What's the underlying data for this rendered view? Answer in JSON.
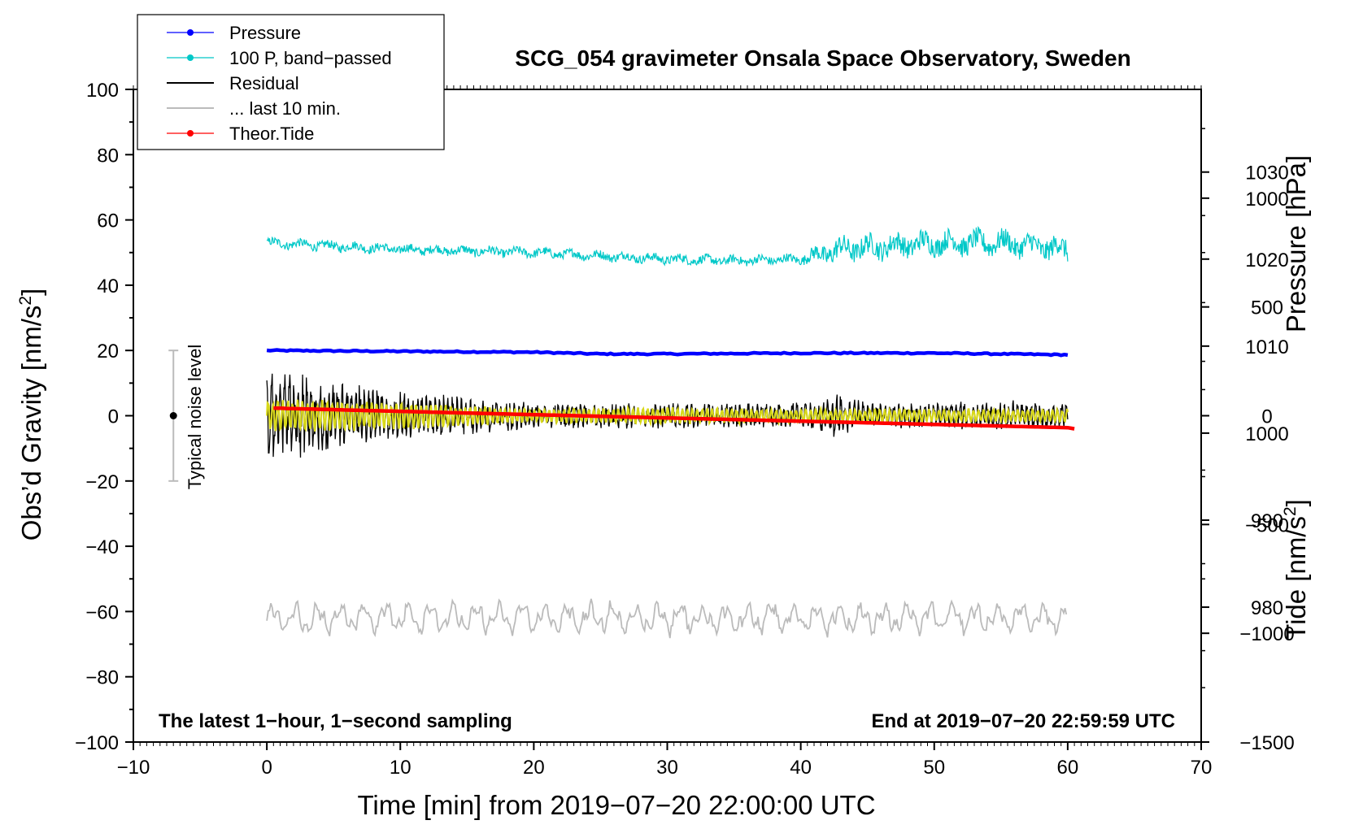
{
  "chart_data": {
    "type": "line",
    "title": "SCG_054 gravimeter Onsala Space Observatory, Sweden",
    "xlabel": "Time [min] from 2019−07−20 22:00:00 UTC",
    "ylabel_main": "Obs’d Gravity [nm/s",
    "ylabel_main_sup": "2",
    "ylabel_main_end": "]",
    "ylabel_pressure": "Pressure [hPa]",
    "ylabel_tide": "Tide [nm/s",
    "ylabel_tide_sup": "2",
    "ylabel_tide_end": "]",
    "xlim": [
      -10,
      70
    ],
    "ylim": [
      -100,
      100
    ],
    "pressure_lim": [
      964.5,
      1039.5
    ],
    "tide_lim": [
      -1500,
      1500
    ],
    "x_ticks": [
      "−10",
      "0",
      "10",
      "20",
      "30",
      "40",
      "50",
      "60",
      "70"
    ],
    "x_tick_values": [
      -10,
      0,
      10,
      20,
      30,
      40,
      50,
      60,
      70
    ],
    "y_ticks": [
      "−100",
      "−80",
      "−60",
      "−40",
      "−20",
      "0",
      "20",
      "40",
      "60",
      "80",
      "100"
    ],
    "y_tick_values": [
      -100,
      -80,
      -60,
      -40,
      -20,
      0,
      20,
      40,
      60,
      80,
      100
    ],
    "pressure_ticks": [
      "980",
      "990",
      "1000",
      "1010",
      "1020",
      "1030"
    ],
    "pressure_tick_values": [
      980,
      990,
      1000,
      1010,
      1020,
      1030
    ],
    "tide_ticks": [
      "−1500",
      "−1000",
      "−500",
      "0",
      "500",
      "1000"
    ],
    "tide_tick_values": [
      -1500,
      -1000,
      -500,
      0,
      500,
      1000
    ],
    "note_left": "The latest 1−hour, 1−second sampling",
    "note_right": "End at 2019−07−20 22:59:59 UTC",
    "noise_label": "Typical noise level",
    "noise_bar": {
      "x": -7,
      "center": 0,
      "low": -20,
      "high": 20
    },
    "legend": [
      {
        "label": "Pressure",
        "color": "#0000ff",
        "marker": true
      },
      {
        "label": "100 P, band−passed",
        "color": "#00c8c8",
        "marker": true
      },
      {
        "label": "Residual",
        "color": "#000000",
        "marker": false
      },
      {
        "label": "... last 10 min.",
        "color": "#bbbbbb",
        "marker": false
      },
      {
        "label": "Theor.Tide",
        "color": "#ff0000",
        "marker": true
      }
    ],
    "series": [
      {
        "name": "Pressure",
        "color": "#0000ff",
        "axis": "pressure",
        "x": [
          0,
          10,
          20,
          25,
          30,
          40,
          50,
          60
        ],
        "y": [
          1009.5,
          1009.4,
          1009.3,
          1009.1,
          1009.1,
          1009.2,
          1009.2,
          1009.0
        ]
      },
      {
        "name": "100 P, band-passed",
        "color": "#00c8c8",
        "axis": "gravity",
        "base_x": [
          0,
          10,
          20,
          30,
          35,
          40,
          43,
          50,
          55,
          60
        ],
        "base_y": [
          53,
          51,
          50,
          48,
          47.5,
          48,
          51,
          53,
          53,
          51
        ],
        "amplitude_x": [
          0,
          40,
          42,
          60
        ],
        "amplitude": [
          1.3,
          1.3,
          3.2,
          3.2
        ]
      },
      {
        "name": "Residual",
        "color": "#000000",
        "axis": "gravity",
        "x_range": [
          0,
          60
        ],
        "amplitude_x": [
          0,
          1,
          4,
          8,
          12,
          20,
          30,
          40,
          43,
          45,
          50,
          55,
          60
        ],
        "amplitude": [
          14,
          16,
          12,
          9,
          7,
          4,
          4,
          4,
          7,
          4,
          4,
          5,
          4
        ]
      },
      {
        "name": "Yellow",
        "color": "#d8d81a",
        "axis": "gravity",
        "x_range": [
          0,
          60
        ],
        "amplitude_x": [
          0,
          10,
          20,
          30,
          40,
          60
        ],
        "amplitude": [
          5,
          4,
          2,
          2.5,
          2,
          2
        ]
      },
      {
        "name": "... last 10 min.",
        "color": "#bbbbbb",
        "axis": "gravity",
        "x_range": [
          0,
          60
        ],
        "base": -62,
        "amplitude_x": [
          0,
          60
        ],
        "amplitude": [
          3,
          3
        ]
      },
      {
        "name": "Theor.Tide",
        "color": "#ff0000",
        "axis": "tide",
        "x": [
          0.5,
          10,
          20,
          30,
          40,
          50,
          60,
          60.5
        ],
        "y": [
          35,
          20,
          5,
          -10,
          -25,
          -40,
          -55,
          -60
        ]
      }
    ]
  }
}
